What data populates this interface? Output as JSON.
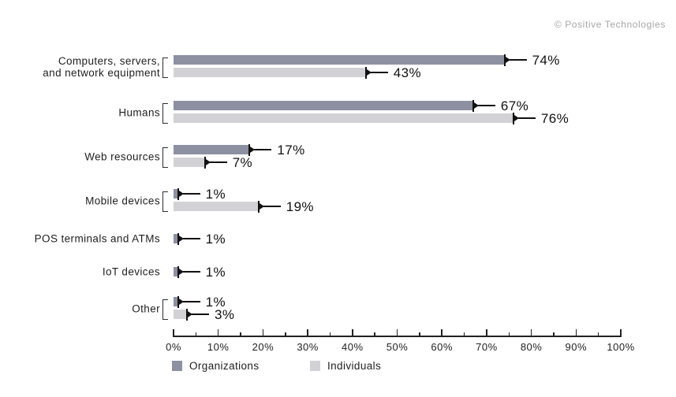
{
  "copyright": "© Positive Technologies",
  "colors": {
    "organizations": "#8c90a1",
    "individuals": "#d2d2d6",
    "marker": "#111111",
    "axis": "#222222",
    "copyright_text": "#a6a6a6"
  },
  "legend": [
    {
      "key": "organizations",
      "label": "Organizations"
    },
    {
      "key": "individuals",
      "label": "Individuals"
    }
  ],
  "chart_data": {
    "type": "bar",
    "orientation": "horizontal",
    "unit": "%",
    "xlim": [
      0,
      100
    ],
    "x_major_tick_step": 10,
    "x_minor_tick_step": 5,
    "x_tick_labels": [
      "0%",
      "10%",
      "20%",
      "30%",
      "40%",
      "50%",
      "60%",
      "70%",
      "80%",
      "90%",
      "100%"
    ],
    "categories": [
      "Computers, servers, and network equipment",
      "Humans",
      "Web resources",
      "Mobile devices",
      "POS terminals and ATMs",
      "IoT devices",
      "Other"
    ],
    "category_lines": [
      [
        "Computers, servers,",
        "and network equipment"
      ],
      [
        "Humans"
      ],
      [
        "Web resources"
      ],
      [
        "Mobile devices"
      ],
      [
        "POS terminals and ATMs"
      ],
      [
        "IoT devices"
      ],
      [
        "Other"
      ]
    ],
    "series": [
      {
        "name": "Organizations",
        "values": [
          74,
          67,
          17,
          1,
          1,
          1,
          1
        ]
      },
      {
        "name": "Individuals",
        "values": [
          43,
          76,
          7,
          19,
          null,
          null,
          3
        ]
      }
    ],
    "value_labels": [
      [
        "74%",
        "43%"
      ],
      [
        "67%",
        "76%"
      ],
      [
        "17%",
        "7%"
      ],
      [
        "1%",
        "19%"
      ],
      [
        "1%",
        null
      ],
      [
        "1%",
        null
      ],
      [
        "1%",
        "3%"
      ]
    ],
    "legend_position": "bottom",
    "grid": false
  }
}
